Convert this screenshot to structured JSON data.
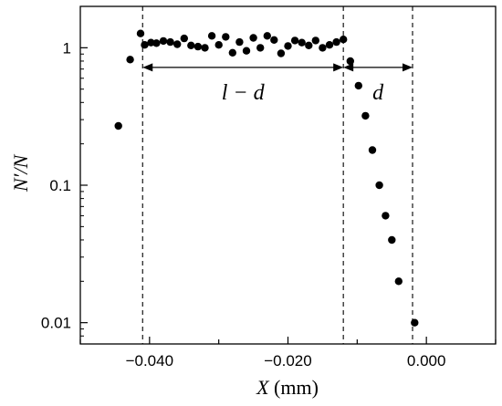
{
  "chart_data": {
    "type": "scatter",
    "xlabel_var": "X",
    "xlabel_unit": "(mm)",
    "ylabel": "N′/N",
    "xlim": [
      -0.05,
      0.01
    ],
    "ylim": [
      0.007,
      2.0
    ],
    "yscale": "log",
    "grid": false,
    "x_ticks": [
      -0.04,
      -0.02,
      0.0
    ],
    "x_tick_labels": [
      "−0.040",
      "−0.020",
      "0.000"
    ],
    "y_ticks": [
      0.01,
      0.1,
      1
    ],
    "y_tick_labels": [
      "0.01",
      "0.1",
      "1"
    ],
    "vlines": [
      -0.041,
      -0.012,
      -0.002
    ],
    "annotations": [
      {
        "text": "l − d",
        "from": -0.041,
        "to": -0.012,
        "y": 0.72
      },
      {
        "text": "d",
        "from": -0.012,
        "to": -0.002,
        "y": 0.72
      }
    ],
    "x": [
      -0.0445,
      -0.0428,
      -0.0413,
      -0.0407,
      -0.0398,
      -0.039,
      -0.038,
      -0.037,
      -0.036,
      -0.035,
      -0.034,
      -0.033,
      -0.032,
      -0.031,
      -0.03,
      -0.029,
      -0.028,
      -0.027,
      -0.026,
      -0.025,
      -0.024,
      -0.023,
      -0.022,
      -0.021,
      -0.02,
      -0.019,
      -0.018,
      -0.017,
      -0.016,
      -0.015,
      -0.014,
      -0.013,
      -0.012,
      -0.011,
      -0.0098,
      -0.0088,
      -0.0078,
      -0.0068,
      -0.0059,
      -0.005,
      -0.004,
      -0.0017
    ],
    "y": [
      0.27,
      0.82,
      1.27,
      1.05,
      1.09,
      1.08,
      1.12,
      1.1,
      1.06,
      1.17,
      1.04,
      1.02,
      1.0,
      1.22,
      1.05,
      1.2,
      0.92,
      1.1,
      0.95,
      1.18,
      1.0,
      1.22,
      1.14,
      0.91,
      1.03,
      1.13,
      1.09,
      1.04,
      1.13,
      1.0,
      1.05,
      1.1,
      1.15,
      0.8,
      0.53,
      0.32,
      0.18,
      0.1,
      0.06,
      0.04,
      0.02,
      0.01
    ]
  }
}
